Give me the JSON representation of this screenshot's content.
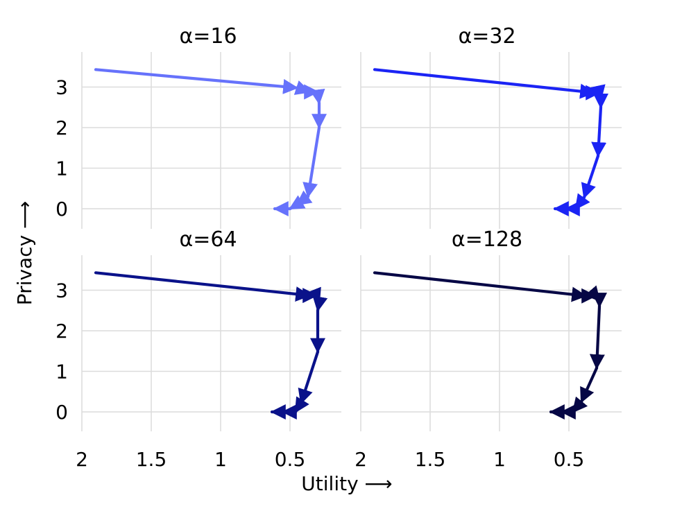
{
  "chart_data": {
    "type": "line",
    "xlabel": "Utility ⟶",
    "ylabel": "Privacy ⟶",
    "xlim": [
      2.0,
      0.38
    ],
    "x_inverted": true,
    "ylim": [
      -0.45,
      3.9
    ],
    "xticks": [
      2,
      1.5,
      1,
      0.5
    ],
    "xtick_labels": [
      "2",
      "1.5",
      "1",
      "0.5"
    ],
    "yticks": [
      0,
      1,
      2,
      3
    ],
    "ytick_labels": [
      "0",
      "1",
      "2",
      "3"
    ],
    "grid": true,
    "layout": "2x2 panels, shared axes",
    "panels": [
      {
        "title": "α=16",
        "color": "#6672fb",
        "points": [
          {
            "x": 1.9,
            "y": 3.43
          },
          {
            "x": 0.45,
            "y": 2.98
          },
          {
            "x": 0.36,
            "y": 2.88
          },
          {
            "x": 0.3,
            "y": 2.88
          },
          {
            "x": 0.29,
            "y": 2.6
          },
          {
            "x": 0.29,
            "y": 2.0
          },
          {
            "x": 0.37,
            "y": 0.3
          },
          {
            "x": 0.45,
            "y": 0.1
          },
          {
            "x": 0.5,
            "y": 0.0
          },
          {
            "x": 0.61,
            "y": 0.0
          }
        ]
      },
      {
        "title": "α=32",
        "color": "#1b24f4",
        "points": [
          {
            "x": 1.9,
            "y": 3.43
          },
          {
            "x": 0.32,
            "y": 2.86
          },
          {
            "x": 0.28,
            "y": 2.86
          },
          {
            "x": 0.27,
            "y": 2.7
          },
          {
            "x": 0.27,
            "y": 2.5
          },
          {
            "x": 0.29,
            "y": 1.3
          },
          {
            "x": 0.39,
            "y": 0.28
          },
          {
            "x": 0.45,
            "y": 0.0
          },
          {
            "x": 0.52,
            "y": 0.0
          },
          {
            "x": 0.6,
            "y": 0.0
          }
        ]
      },
      {
        "title": "α=64",
        "color": "#0a128a",
        "points": [
          {
            "x": 1.9,
            "y": 3.43
          },
          {
            "x": 0.36,
            "y": 2.87
          },
          {
            "x": 0.31,
            "y": 2.87
          },
          {
            "x": 0.29,
            "y": 2.7
          },
          {
            "x": 0.3,
            "y": 2.5
          },
          {
            "x": 0.3,
            "y": 1.48
          },
          {
            "x": 0.42,
            "y": 0.22
          },
          {
            "x": 0.46,
            "y": 0.0
          },
          {
            "x": 0.55,
            "y": 0.0
          },
          {
            "x": 0.63,
            "y": 0.0
          }
        ]
      },
      {
        "title": "α=128",
        "color": "#060745",
        "points": [
          {
            "x": 1.9,
            "y": 3.43
          },
          {
            "x": 0.38,
            "y": 2.86
          },
          {
            "x": 0.31,
            "y": 2.86
          },
          {
            "x": 0.28,
            "y": 2.74
          },
          {
            "x": 0.28,
            "y": 2.6
          },
          {
            "x": 0.3,
            "y": 1.08
          },
          {
            "x": 0.41,
            "y": 0.25
          },
          {
            "x": 0.47,
            "y": 0.0
          },
          {
            "x": 0.55,
            "y": 0.0
          },
          {
            "x": 0.63,
            "y": 0.0
          }
        ]
      }
    ]
  }
}
